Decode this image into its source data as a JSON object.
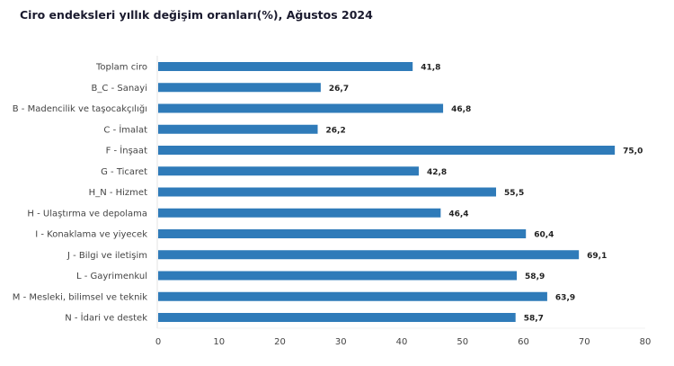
{
  "chart_data": {
    "type": "bar",
    "orientation": "horizontal",
    "title": "Ciro endeksleri yıllık değişim oranları(%), Ağustos 2024",
    "xlabel": "",
    "ylabel": "",
    "categories": [
      "Toplam ciro",
      "B_C - Sanayi",
      "B - Madencilik ve taşocakçılığı",
      "C - İmalat",
      "F - İnşaat",
      "G - Ticaret",
      "H_N - Hizmet",
      "H - Ulaştırma ve depolama",
      "I - Konaklama ve yiyecek",
      "J - Bilgi ve iletişim",
      "L - Gayrimenkul",
      "M - Mesleki, bilimsel ve teknik",
      "N - İdari ve destek"
    ],
    "values": [
      41.8,
      26.7,
      46.8,
      26.2,
      75.0,
      42.8,
      55.5,
      46.4,
      60.4,
      69.1,
      58.9,
      63.9,
      58.7
    ],
    "value_labels": [
      "41,8",
      "26,7",
      "46,8",
      "26,2",
      "75,0",
      "42,8",
      "55,5",
      "46,4",
      "60,4",
      "69,1",
      "58,9",
      "63,9",
      "58,7"
    ],
    "xlim": [
      0,
      80
    ],
    "xticks": [
      0,
      10,
      20,
      30,
      40,
      50,
      60,
      70,
      80
    ],
    "grid": false,
    "legend": "none",
    "bar_color": "#2f7bb9"
  }
}
